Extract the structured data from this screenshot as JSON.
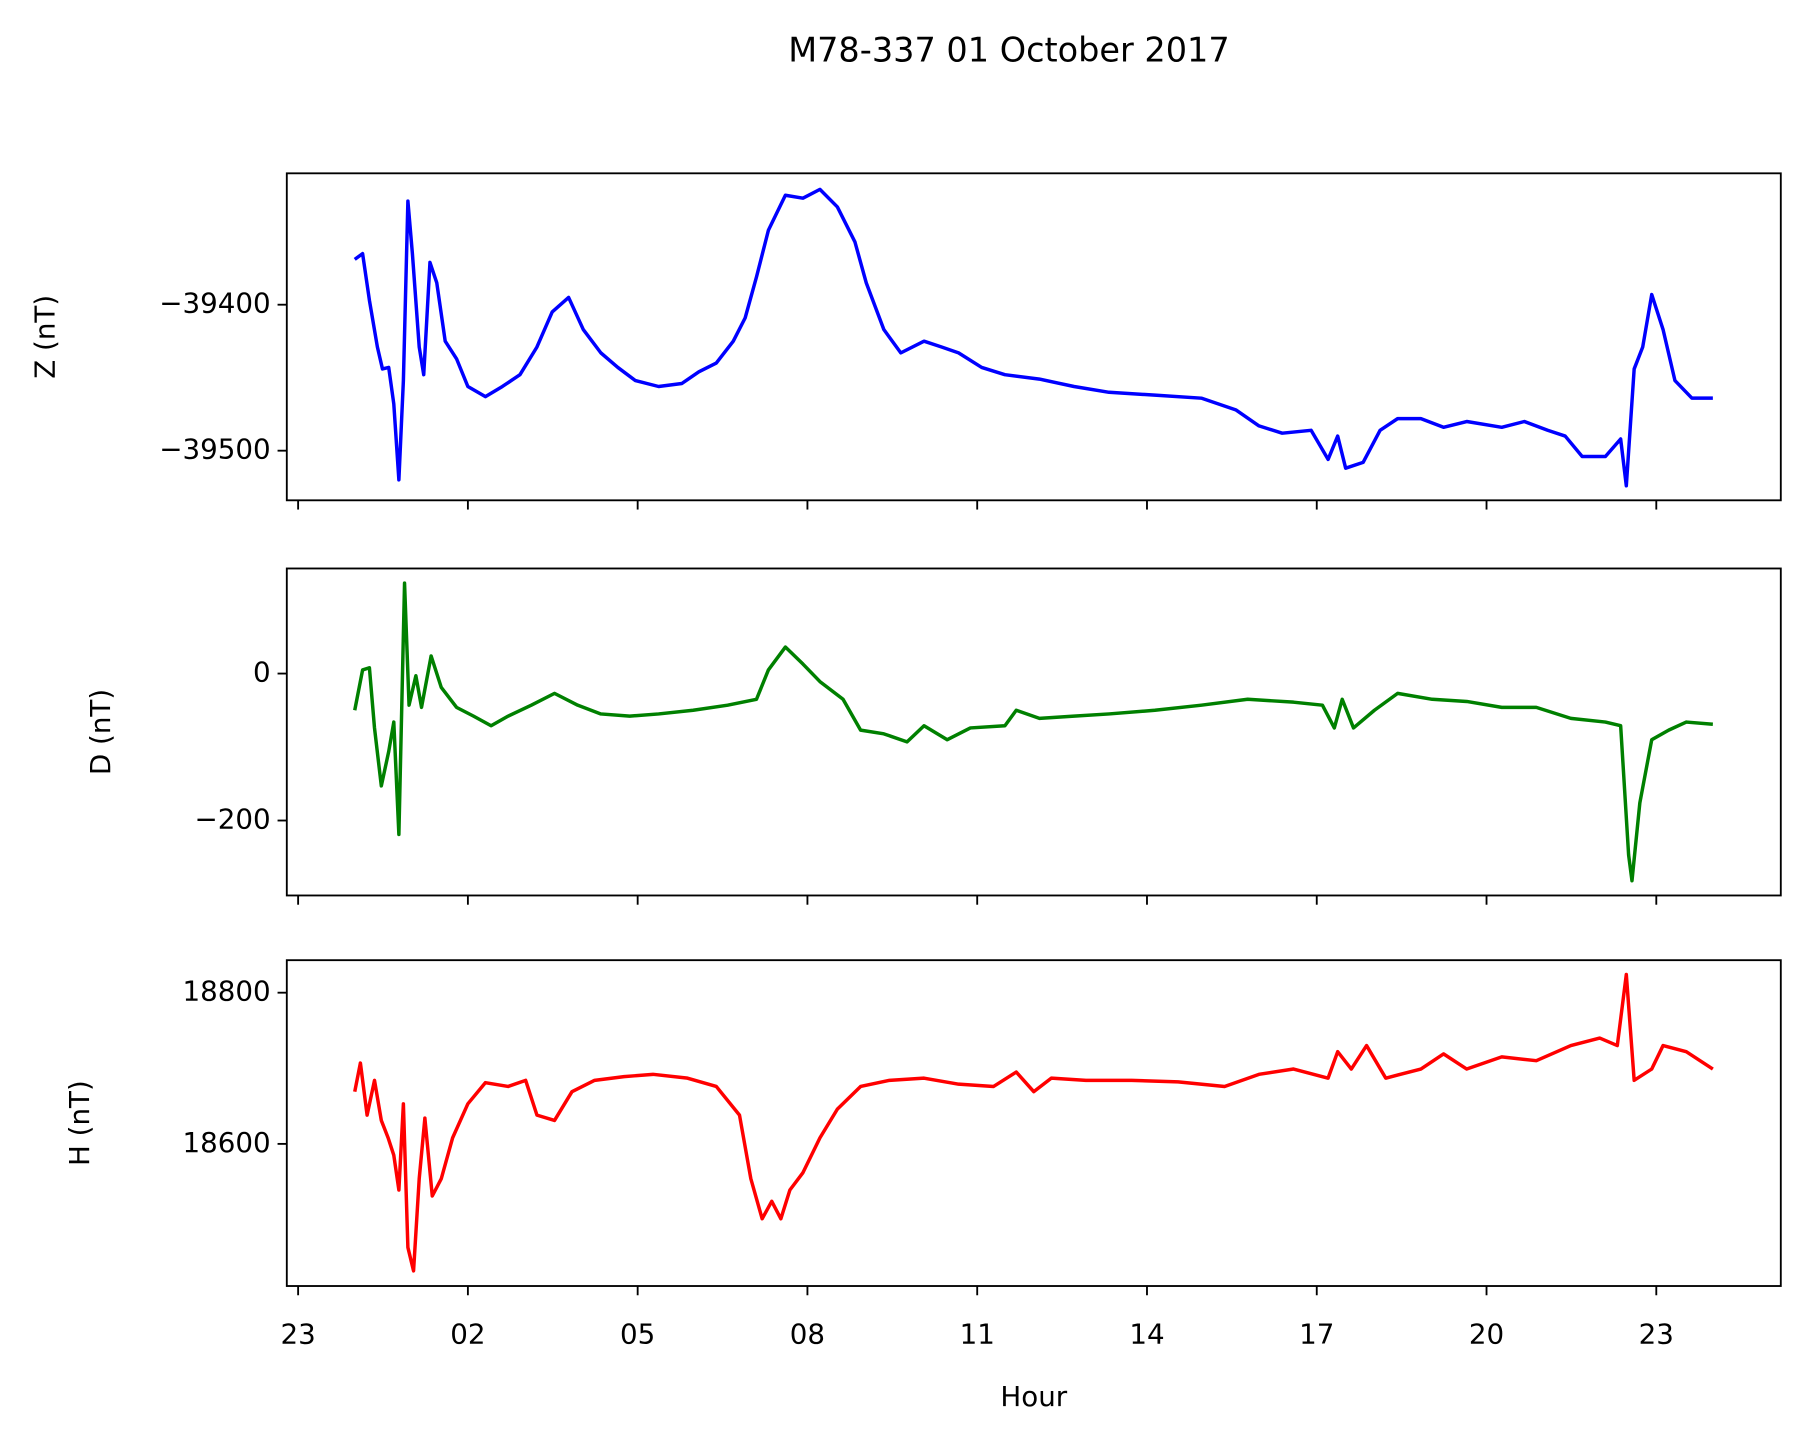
{
  "title": "M78-337 01 October 2017",
  "chart_data": [
    {
      "type": "line",
      "ylabel": "Z (nT)",
      "color": "#0000ff",
      "ylim": [
        -39534,
        -39310
      ],
      "yticks": [
        {
          "value": -39400,
          "label": "−39400"
        },
        {
          "value": -39500,
          "label": "−39500"
        }
      ],
      "xlim": [
        -1.2,
        25.2
      ],
      "x": [
        0,
        0.14,
        0.26,
        0.4,
        0.49,
        0.6,
        0.69,
        0.78,
        0.86,
        0.94,
        1.02,
        1.14,
        1.22,
        1.33,
        1.45,
        1.6,
        1.8,
        2.0,
        2.31,
        2.61,
        2.92,
        3.22,
        3.49,
        3.78,
        4.04,
        4.35,
        4.65,
        4.96,
        5.37,
        5.78,
        6.08,
        6.39,
        6.69,
        6.9,
        7.1,
        7.31,
        7.61,
        7.92,
        8.22,
        8.53,
        8.84,
        9.04,
        9.35,
        9.65,
        10.06,
        10.37,
        10.67,
        11.08,
        11.49,
        12.1,
        12.71,
        13.33,
        14.14,
        14.96,
        15.57,
        15.98,
        16.39,
        16.9,
        17.2,
        17.37,
        17.51,
        17.82,
        18.12,
        18.43,
        18.84,
        19.24,
        19.65,
        20.27,
        20.67,
        21.08,
        21.39,
        21.69,
        22.1,
        22.37,
        22.47,
        22.61,
        22.76,
        22.92,
        23.12,
        23.33,
        23.63,
        24.0
      ],
      "values": [
        -39369,
        -39365,
        -39397,
        -39429,
        -39444,
        -39443,
        -39468,
        -39520,
        -39452,
        -39329,
        -39365,
        -39429,
        -39448,
        -39371,
        -39385,
        -39425,
        -39437,
        -39456,
        -39463,
        -39456,
        -39448,
        -39429,
        -39405,
        -39395,
        -39417,
        -39433,
        -39443,
        -39452,
        -39456,
        -39454,
        -39446,
        -39440,
        -39425,
        -39409,
        -39381,
        -39349,
        -39325,
        -39327,
        -39321,
        -39333,
        -39357,
        -39385,
        -39417,
        -39433,
        -39425,
        -39429,
        -39433,
        -39443,
        -39448,
        -39451,
        -39456,
        -39460,
        -39462,
        -39464,
        -39472,
        -39483,
        -39488,
        -39486,
        -39506,
        -39490,
        -39512,
        -39508,
        -39486,
        -39478,
        -39478,
        -39484,
        -39480,
        -39484,
        -39480,
        -39486,
        -39490,
        -39504,
        -39504,
        -39492,
        -39524,
        -39444,
        -39429,
        -39393,
        -39417,
        -39452,
        -39464,
        -39464
      ]
    },
    {
      "type": "line",
      "ylabel": "D (nT)",
      "color": "#008000",
      "ylim": [
        -302,
        143
      ],
      "yticks": [
        {
          "value": -200,
          "label": "−200"
        },
        0
      ],
      "xlim": [
        -1.2,
        25.2
      ],
      "x": [
        0,
        0.14,
        0.26,
        0.35,
        0.47,
        0.6,
        0.69,
        0.78,
        0.88,
        0.96,
        1.08,
        1.18,
        1.35,
        1.53,
        1.8,
        2.1,
        2.41,
        2.71,
        3.12,
        3.53,
        3.94,
        4.35,
        4.86,
        5.37,
        5.98,
        6.59,
        7.1,
        7.31,
        7.61,
        7.92,
        8.22,
        8.63,
        8.94,
        9.35,
        9.76,
        10.06,
        10.47,
        10.88,
        11.49,
        11.69,
        12.1,
        12.71,
        13.33,
        14.14,
        14.96,
        15.78,
        16.59,
        17.1,
        17.31,
        17.45,
        17.65,
        18.02,
        18.43,
        19.04,
        19.65,
        20.27,
        20.88,
        21.49,
        22.1,
        22.37,
        22.51,
        22.57,
        22.71,
        22.92,
        23.22,
        23.53,
        24.0
      ],
      "values": [
        -50,
        5,
        8,
        -74,
        -153,
        -106,
        -66,
        -219,
        123,
        -43,
        -3,
        -46,
        24,
        -19,
        -46,
        -58,
        -71,
        -58,
        -43,
        -27,
        -43,
        -55,
        -58,
        -55,
        -50,
        -43,
        -35,
        5,
        36,
        13,
        -11,
        -35,
        -77,
        -82,
        -93,
        -71,
        -90,
        -74,
        -71,
        -50,
        -61,
        -58,
        -55,
        -50,
        -43,
        -35,
        -39,
        -43,
        -74,
        -35,
        -74,
        -50,
        -27,
        -35,
        -38,
        -46,
        -46,
        -61,
        -66,
        -71,
        -247,
        -282,
        -176,
        -90,
        -77,
        -66,
        -69
      ]
    },
    {
      "type": "line",
      "ylabel": "H (nT)",
      "color": "#ff0000",
      "xlabel": "Hour",
      "ylim": [
        18412,
        18843
      ],
      "yticks": [
        18600,
        18800
      ],
      "xlim": [
        -1.2,
        25.2
      ],
      "xticks": [
        {
          "value": -1,
          "label": "23"
        },
        {
          "value": 2,
          "label": "02"
        },
        {
          "value": 5,
          "label": "05"
        },
        {
          "value": 8,
          "label": "08"
        },
        11,
        14,
        17,
        20,
        23
      ],
      "x": [
        0,
        0.1,
        0.22,
        0.35,
        0.47,
        0.59,
        0.69,
        0.78,
        0.86,
        0.94,
        1.04,
        1.14,
        1.24,
        1.37,
        1.53,
        1.73,
        2.0,
        2.31,
        2.71,
        3.02,
        3.22,
        3.53,
        3.84,
        4.24,
        4.76,
        5.27,
        5.88,
        6.39,
        6.8,
        7.0,
        7.2,
        7.37,
        7.53,
        7.69,
        7.92,
        8.22,
        8.53,
        8.94,
        9.45,
        10.06,
        10.67,
        11.29,
        11.69,
        12.0,
        12.31,
        12.92,
        13.73,
        14.55,
        15.37,
        15.98,
        16.59,
        17.2,
        17.37,
        17.61,
        17.88,
        18.22,
        18.84,
        19.24,
        19.65,
        20.27,
        20.88,
        21.49,
        22.0,
        22.31,
        22.47,
        22.61,
        22.92,
        23.12,
        23.53,
        24.0
      ],
      "values": [
        18669,
        18707,
        18638,
        18684,
        18631,
        18608,
        18585,
        18539,
        18653,
        18463,
        18432,
        18554,
        18634,
        18531,
        18554,
        18608,
        18653,
        18681,
        18676,
        18684,
        18638,
        18631,
        18669,
        18684,
        18689,
        18692,
        18687,
        18676,
        18638,
        18554,
        18501,
        18524,
        18501,
        18539,
        18562,
        18608,
        18646,
        18676,
        18684,
        18687,
        18679,
        18676,
        18695,
        18669,
        18687,
        18684,
        18684,
        18682,
        18676,
        18692,
        18699,
        18687,
        18722,
        18699,
        18730,
        18687,
        18699,
        18719,
        18699,
        18715,
        18710,
        18730,
        18740,
        18730,
        18824,
        18684,
        18699,
        18730,
        18722,
        18699
      ]
    }
  ]
}
